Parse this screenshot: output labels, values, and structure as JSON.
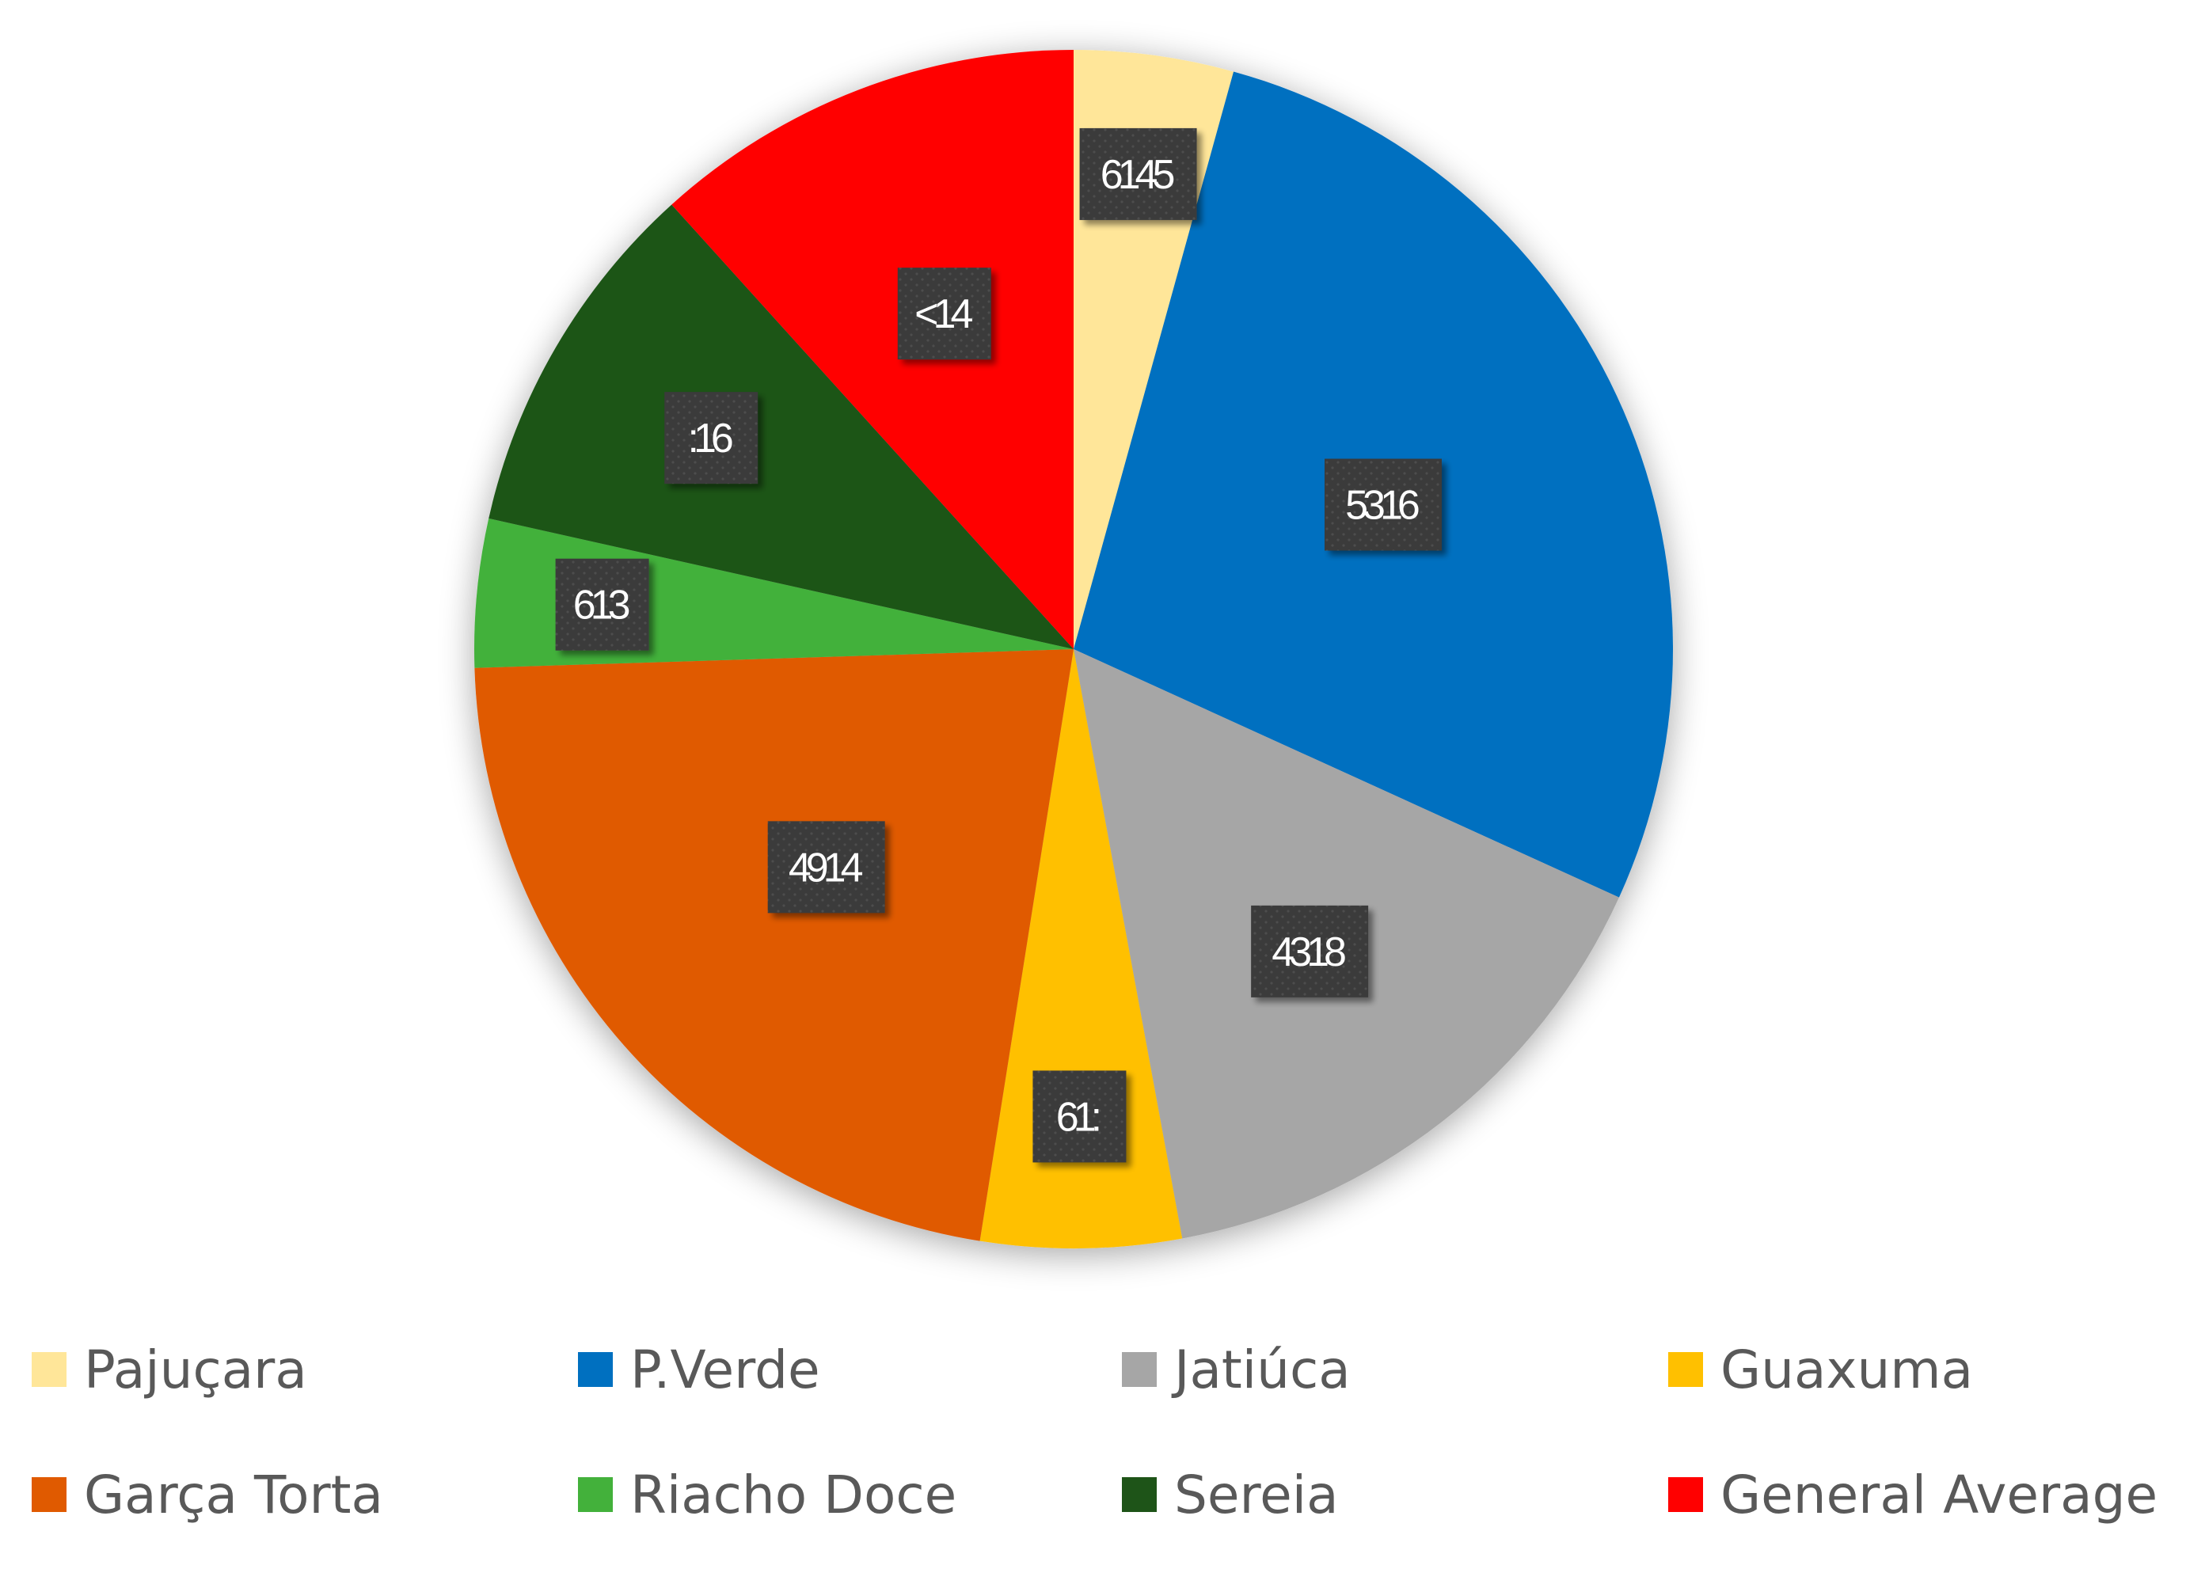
{
  "chart_data": {
    "type": "pie",
    "title": "",
    "start_angle_deg": 0,
    "direction": "clockwise",
    "legend_position": "bottom",
    "slices": [
      {
        "name": "Pajuçara",
        "value": 4.3,
        "label": "6145",
        "color": "#FFE699"
      },
      {
        "name": "P.Verde",
        "value": 27.5,
        "label": "5316",
        "color": "#0070C0"
      },
      {
        "name": "Jatiúca",
        "value": 15.3,
        "label": "4318",
        "color": "#A6A6A6"
      },
      {
        "name": "Guaxuma",
        "value": 5.4,
        "label": "61:",
        "color": "#FFC000"
      },
      {
        "name": "Garça Torta",
        "value": 22.0,
        "label": "4914",
        "color": "#E05A00"
      },
      {
        "name": "Riacho Doce",
        "value": 4.0,
        "label": "613",
        "color": "#43B13B"
      },
      {
        "name": "Sereia",
        "value": 9.8,
        "label": ":16",
        "color": "#1E5418"
      },
      {
        "name": "General Average",
        "value": 11.7,
        "label": "<14",
        "color": "#FF0000"
      }
    ]
  }
}
